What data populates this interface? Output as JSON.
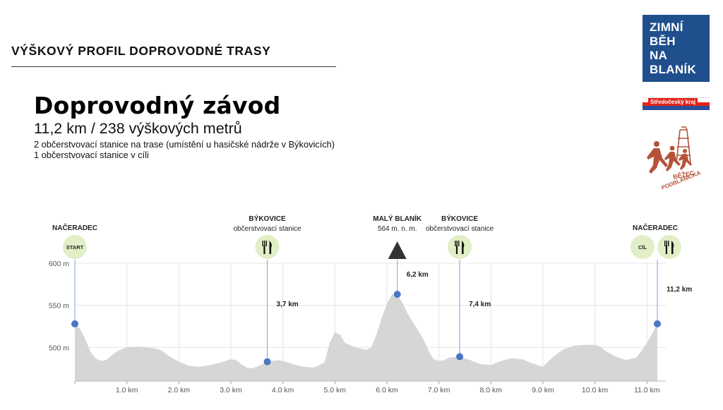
{
  "header": {
    "section_title": "VÝŠKOVÝ PROFIL DOPROVODNÉ TRASY",
    "race_name": "Doprovodný závod",
    "race_summary": "11,2 km / 238 výškových metrů",
    "notes": [
      "2 občerstvovací stanice na trase (umístění u hasičské nádrže v Býkovicích)",
      "1 občerstvovací stanice v cíli"
    ]
  },
  "logos": {
    "zimni_beh": [
      "ZIMNÍ",
      "BĚH",
      "NA",
      "BLANÍK"
    ],
    "kraj": "Středočeský kraj",
    "bezec": [
      "BĚŽEC",
      "PODBLANICKA"
    ]
  },
  "colors": {
    "profile_fill": "#d6d6d6",
    "marker": "#4a76c4",
    "marker_line": "#8fb0de",
    "badge": "#e2eec6",
    "logo_blue": "#1f4f8c",
    "logo_red": "#e2241b",
    "logo_brown": "#b5533a"
  },
  "chart_data": {
    "type": "area",
    "xlabel": "",
    "ylabel": "",
    "x_unit": "km",
    "y_unit": "m",
    "xlim": [
      0,
      11.2
    ],
    "ylim": [
      460,
      600
    ],
    "x_ticks": [
      {
        "value": 1,
        "label": "1.0 km"
      },
      {
        "value": 2,
        "label": "2.0 km"
      },
      {
        "value": 3,
        "label": "3.0 km"
      },
      {
        "value": 4,
        "label": "4.0 km"
      },
      {
        "value": 5,
        "label": "5.0 km"
      },
      {
        "value": 6,
        "label": "6.0 km"
      },
      {
        "value": 7,
        "label": "7.0 km"
      },
      {
        "value": 8,
        "label": "8.0 km"
      },
      {
        "value": 9,
        "label": "9.0 km"
      },
      {
        "value": 10,
        "label": "10.0 km"
      },
      {
        "value": 11,
        "label": "11.0 km"
      }
    ],
    "y_ticks": [
      {
        "value": 500,
        "label": "500 m"
      },
      {
        "value": 550,
        "label": "550 m"
      },
      {
        "value": 600,
        "label": "600 m"
      }
    ],
    "grid": true,
    "profile": [
      {
        "x": 0.0,
        "y": 528
      },
      {
        "x": 0.1,
        "y": 522
      },
      {
        "x": 0.2,
        "y": 510
      },
      {
        "x": 0.3,
        "y": 495
      },
      {
        "x": 0.4,
        "y": 487
      },
      {
        "x": 0.5,
        "y": 484
      },
      {
        "x": 0.6,
        "y": 485
      },
      {
        "x": 0.7,
        "y": 490
      },
      {
        "x": 0.8,
        "y": 495
      },
      {
        "x": 0.9,
        "y": 498
      },
      {
        "x": 1.0,
        "y": 500
      },
      {
        "x": 1.2,
        "y": 501
      },
      {
        "x": 1.4,
        "y": 500
      },
      {
        "x": 1.6,
        "y": 498
      },
      {
        "x": 1.7,
        "y": 495
      },
      {
        "x": 1.8,
        "y": 490
      },
      {
        "x": 2.0,
        "y": 483
      },
      {
        "x": 2.2,
        "y": 478
      },
      {
        "x": 2.4,
        "y": 477
      },
      {
        "x": 2.6,
        "y": 479
      },
      {
        "x": 2.8,
        "y": 482
      },
      {
        "x": 3.0,
        "y": 486
      },
      {
        "x": 3.1,
        "y": 485
      },
      {
        "x": 3.2,
        "y": 480
      },
      {
        "x": 3.3,
        "y": 476
      },
      {
        "x": 3.4,
        "y": 475
      },
      {
        "x": 3.5,
        "y": 477
      },
      {
        "x": 3.6,
        "y": 480
      },
      {
        "x": 3.7,
        "y": 483
      },
      {
        "x": 3.8,
        "y": 484
      },
      {
        "x": 3.9,
        "y": 485
      },
      {
        "x": 4.0,
        "y": 484
      },
      {
        "x": 4.2,
        "y": 480
      },
      {
        "x": 4.4,
        "y": 477
      },
      {
        "x": 4.6,
        "y": 476
      },
      {
        "x": 4.8,
        "y": 482
      },
      {
        "x": 4.9,
        "y": 505
      },
      {
        "x": 5.0,
        "y": 518
      },
      {
        "x": 5.1,
        "y": 515
      },
      {
        "x": 5.2,
        "y": 505
      },
      {
        "x": 5.4,
        "y": 500
      },
      {
        "x": 5.6,
        "y": 497
      },
      {
        "x": 5.7,
        "y": 500
      },
      {
        "x": 5.8,
        "y": 515
      },
      {
        "x": 5.9,
        "y": 535
      },
      {
        "x": 6.0,
        "y": 552
      },
      {
        "x": 6.1,
        "y": 563
      },
      {
        "x": 6.2,
        "y": 562
      },
      {
        "x": 6.3,
        "y": 553
      },
      {
        "x": 6.4,
        "y": 540
      },
      {
        "x": 6.5,
        "y": 530
      },
      {
        "x": 6.6,
        "y": 520
      },
      {
        "x": 6.7,
        "y": 510
      },
      {
        "x": 6.8,
        "y": 496
      },
      {
        "x": 6.9,
        "y": 486
      },
      {
        "x": 7.0,
        "y": 484
      },
      {
        "x": 7.1,
        "y": 485
      },
      {
        "x": 7.2,
        "y": 488
      },
      {
        "x": 7.4,
        "y": 489
      },
      {
        "x": 7.6,
        "y": 485
      },
      {
        "x": 7.8,
        "y": 480
      },
      {
        "x": 8.0,
        "y": 479
      },
      {
        "x": 8.2,
        "y": 484
      },
      {
        "x": 8.4,
        "y": 487
      },
      {
        "x": 8.6,
        "y": 486
      },
      {
        "x": 8.8,
        "y": 481
      },
      {
        "x": 9.0,
        "y": 477
      },
      {
        "x": 9.2,
        "y": 489
      },
      {
        "x": 9.4,
        "y": 498
      },
      {
        "x": 9.6,
        "y": 502
      },
      {
        "x": 9.8,
        "y": 503
      },
      {
        "x": 10.0,
        "y": 503
      },
      {
        "x": 10.1,
        "y": 501
      },
      {
        "x": 10.2,
        "y": 496
      },
      {
        "x": 10.4,
        "y": 489
      },
      {
        "x": 10.6,
        "y": 485
      },
      {
        "x": 10.8,
        "y": 488
      },
      {
        "x": 11.0,
        "y": 505
      },
      {
        "x": 11.2,
        "y": 528
      }
    ],
    "markers": [
      {
        "name": "NAČERADEC",
        "sub": "",
        "x": 0.0,
        "y": 528,
        "km_label": "",
        "badges": [
          "start"
        ],
        "badge_text": "START"
      },
      {
        "name": "BÝKOVICE",
        "sub": "občerstvovací stanice",
        "x": 3.7,
        "y": 483,
        "km_label": "3,7 km",
        "badges": [
          "food"
        ],
        "badge_text": ""
      },
      {
        "name": "MALÝ BLANÍK",
        "sub": "564 m. n. m.",
        "x": 6.2,
        "y": 563,
        "km_label": "6,2 km",
        "badges": [
          "peak"
        ],
        "badge_text": ""
      },
      {
        "name": "BÝKOVICE",
        "sub": "občerstvovací stanice",
        "x": 7.4,
        "y": 489,
        "km_label": "7,4 km",
        "badges": [
          "food"
        ],
        "badge_text": ""
      },
      {
        "name": "NAČERADEC",
        "sub": "",
        "x": 11.2,
        "y": 528,
        "km_label": "11,2 km",
        "badges": [
          "finish",
          "food"
        ],
        "badge_text": "CÍL"
      }
    ]
  }
}
